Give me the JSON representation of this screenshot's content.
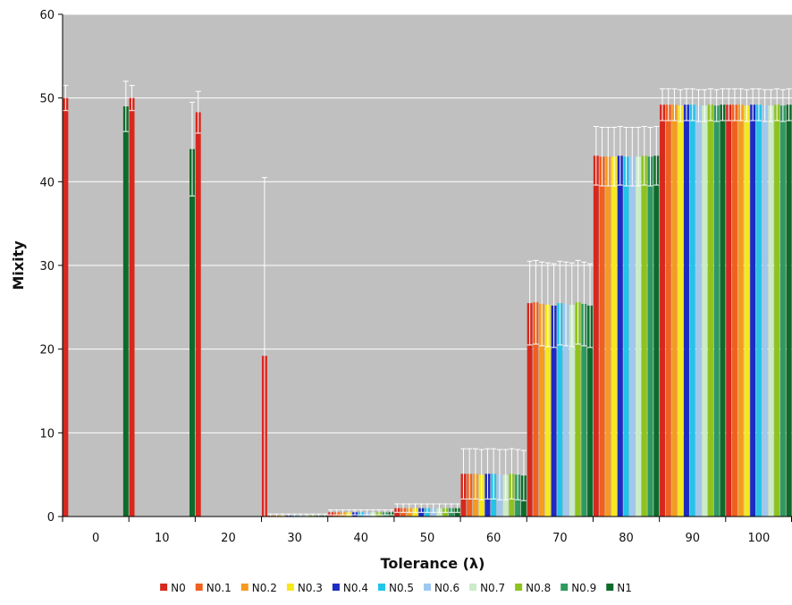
{
  "chart_data": {
    "type": "bar",
    "title": "",
    "xlabel": "Tolerance (λ)",
    "ylabel": "Mixity",
    "ylim": [
      0,
      60
    ],
    "yticks": [
      "0",
      "10",
      "20",
      "30",
      "40",
      "50",
      "60"
    ],
    "categories": [
      "0",
      "10",
      "20",
      "30",
      "40",
      "50",
      "60",
      "70",
      "80",
      "90",
      "100"
    ],
    "grid": true,
    "legend_position": "bottom",
    "series": [
      {
        "name": "N0",
        "color": "#d7281e",
        "values": [
          50,
          50,
          48.3,
          19.2,
          0.5,
          1.0,
          5.1,
          25.5,
          43.1,
          49.2,
          49.2
        ],
        "errors": [
          1.5,
          1.5,
          2.5,
          21.3,
          0.3,
          0.5,
          3.0,
          5.0,
          3.5,
          1.9,
          1.9
        ]
      },
      {
        "name": "N0.1",
        "color": "#f0601e",
        "values": [
          0,
          0,
          0,
          0.1,
          0.5,
          1.0,
          5.1,
          25.6,
          43.0,
          49.2,
          49.2
        ],
        "errors": [
          0,
          0,
          0,
          0.2,
          0.3,
          0.5,
          3.0,
          5.0,
          3.5,
          1.9,
          1.9
        ]
      },
      {
        "name": "N0.2",
        "color": "#f79a1d",
        "values": [
          0,
          0,
          0,
          0.1,
          0.5,
          1.0,
          5.1,
          25.4,
          43.0,
          49.2,
          49.2
        ],
        "errors": [
          0,
          0,
          0,
          0.2,
          0.3,
          0.5,
          3.0,
          5.0,
          3.5,
          1.9,
          1.9
        ]
      },
      {
        "name": "N0.3",
        "color": "#f6e81c",
        "values": [
          0,
          0,
          0,
          0.1,
          0.5,
          1.0,
          5.0,
          25.3,
          43.0,
          49.1,
          49.1
        ],
        "errors": [
          0,
          0,
          0,
          0.2,
          0.3,
          0.5,
          3.0,
          5.0,
          3.5,
          1.9,
          1.9
        ]
      },
      {
        "name": "N0.4",
        "color": "#1d2bc2",
        "values": [
          0,
          0,
          0,
          0.1,
          0.5,
          1.0,
          5.1,
          25.2,
          43.1,
          49.2,
          49.2
        ],
        "errors": [
          0,
          0,
          0,
          0.2,
          0.3,
          0.5,
          3.0,
          5.0,
          3.5,
          1.9,
          1.9
        ]
      },
      {
        "name": "N0.5",
        "color": "#22c4ea",
        "values": [
          0,
          0,
          0,
          0.1,
          0.5,
          1.0,
          5.1,
          25.5,
          43.0,
          49.2,
          49.2
        ],
        "errors": [
          0,
          0,
          0,
          0.2,
          0.3,
          0.5,
          3.0,
          5.0,
          3.5,
          1.9,
          1.9
        ]
      },
      {
        "name": "N0.6",
        "color": "#9ec8f0",
        "values": [
          0,
          0,
          0,
          0.1,
          0.5,
          1.0,
          5.0,
          25.4,
          43.0,
          49.1,
          49.1
        ],
        "errors": [
          0,
          0,
          0,
          0.2,
          0.3,
          0.5,
          3.0,
          5.0,
          3.5,
          1.9,
          1.9
        ]
      },
      {
        "name": "N0.7",
        "color": "#ccebc8",
        "values": [
          0,
          0,
          0,
          0.1,
          0.5,
          1.0,
          5.0,
          25.3,
          43.0,
          49.1,
          49.1
        ],
        "errors": [
          0,
          0,
          0,
          0.2,
          0.3,
          0.5,
          3.0,
          5.0,
          3.5,
          1.9,
          1.9
        ]
      },
      {
        "name": "N0.8",
        "color": "#8ec31f",
        "values": [
          0,
          0,
          0,
          0.1,
          0.5,
          1.0,
          5.1,
          25.6,
          43.1,
          49.2,
          49.2
        ],
        "errors": [
          0,
          0,
          0,
          0.2,
          0.3,
          0.5,
          3.0,
          5.0,
          3.5,
          1.9,
          1.9
        ]
      },
      {
        "name": "N0.9",
        "color": "#2e9a5e",
        "values": [
          0,
          0,
          0,
          0.1,
          0.5,
          1.0,
          5.0,
          25.4,
          43.0,
          49.1,
          49.1
        ],
        "errors": [
          0,
          0,
          0,
          0.2,
          0.3,
          0.5,
          3.0,
          5.0,
          3.5,
          1.9,
          1.9
        ]
      },
      {
        "name": "N1",
        "color": "#0d6b2a",
        "values": [
          49,
          43.9,
          0,
          0.1,
          0.5,
          1.0,
          4.9,
          25.2,
          43.1,
          49.2,
          49.2
        ],
        "errors": [
          3.0,
          5.6,
          0,
          0.2,
          0.3,
          0.5,
          3.0,
          5.0,
          3.5,
          1.9,
          1.9
        ]
      }
    ]
  }
}
